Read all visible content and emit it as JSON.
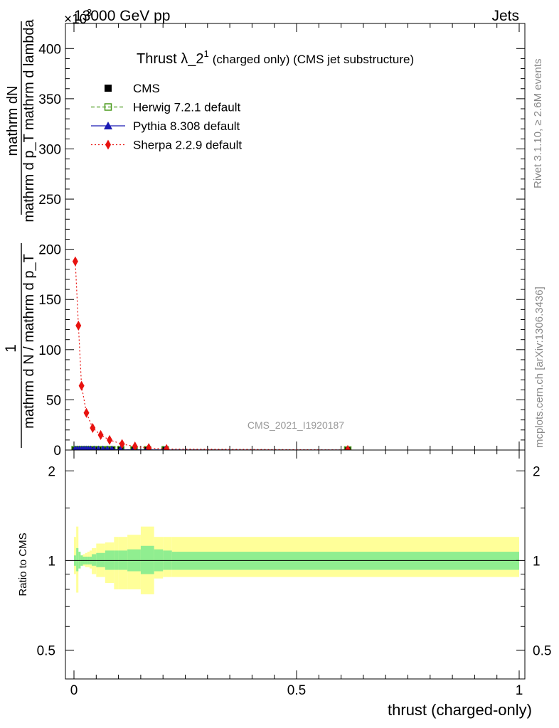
{
  "header": {
    "left": "13000 GeV pp",
    "right": "Jets",
    "exponent_marker": "×10",
    "exponent_power": "3"
  },
  "side_labels": {
    "rivet": "Rivet 3.1.10, ≥ 2.6M events",
    "mcplots": "mcplots.cern.ch [arXiv:1306.3436]"
  },
  "chart_data": [
    {
      "type": "line",
      "title": "Thrust λ_2",
      "title_sup": "1",
      "subtitle": "(charged only) (CMS jet substructure)",
      "watermark": "CMS_2021_I1920187",
      "ylabel_numerator": "1",
      "ylabel_line1": "mathrm dN",
      "ylabel_line2": "mathrm d p_T mathrm d lambda",
      "ylabel_denominator": "mathrm d N / mathrm d p_T",
      "xlim": [
        0,
        1
      ],
      "ylim": [
        0,
        425
      ],
      "y_multiplier": "×10^3",
      "yticks": [
        0,
        50,
        100,
        150,
        200,
        250,
        300,
        350,
        400
      ],
      "legend_position": "top-left",
      "series": [
        {
          "name": "CMS",
          "style": "black filled square",
          "color": "#000000",
          "x": [
            0.0025,
            0.0075,
            0.0125,
            0.0175,
            0.0225,
            0.0275,
            0.0325,
            0.0375,
            0.045,
            0.055,
            0.065,
            0.075,
            0.085,
            0.105,
            0.135,
            0.165,
            0.205,
            0.615
          ],
          "y": [
            0.3,
            0.3,
            0.3,
            0.3,
            0.3,
            0.3,
            0.3,
            0.3,
            0.3,
            0.3,
            0.3,
            0.3,
            0.3,
            0.2,
            0.2,
            0.2,
            0.1,
            0.0
          ]
        },
        {
          "name": "Herwig 7.2.1 default",
          "style": "green dashed, open square",
          "color": "#4a9a1c",
          "x": [
            0.0025,
            0.0075,
            0.0125,
            0.0175,
            0.0225,
            0.0275,
            0.0325,
            0.0375,
            0.045,
            0.055,
            0.065,
            0.075,
            0.085,
            0.105,
            0.135,
            0.165,
            0.205,
            0.615
          ],
          "y": [
            0.3,
            0.3,
            0.3,
            0.3,
            0.3,
            0.3,
            0.3,
            0.3,
            0.3,
            0.3,
            0.3,
            0.3,
            0.3,
            0.2,
            0.2,
            0.2,
            0.1,
            0.0
          ]
        },
        {
          "name": "Pythia 8.308 default",
          "style": "blue solid, filled triangle",
          "color": "#1a1ab4",
          "x": [
            0.0025,
            0.0075,
            0.0125,
            0.0175,
            0.0225,
            0.0275,
            0.0325,
            0.0375,
            0.045,
            0.055,
            0.065,
            0.075,
            0.085,
            0.105,
            0.135,
            0.165,
            0.205,
            0.615
          ],
          "y": [
            0.3,
            0.3,
            0.3,
            0.3,
            0.3,
            0.3,
            0.3,
            0.3,
            0.3,
            0.3,
            0.3,
            0.3,
            0.3,
            0.2,
            0.2,
            0.2,
            0.1,
            0.0
          ]
        },
        {
          "name": "Sherpa 2.2.9 default",
          "style": "red dotted, filled diamond",
          "color": "#e8120f",
          "x": [
            0.003,
            0.01,
            0.017,
            0.028,
            0.042,
            0.06,
            0.08,
            0.108,
            0.137,
            0.168,
            0.208,
            0.615
          ],
          "y": [
            188,
            124,
            64,
            37,
            22,
            15,
            10,
            6,
            3.5,
            2,
            1,
            0.1
          ]
        }
      ]
    },
    {
      "type": "line",
      "ylabel": "Ratio to CMS",
      "xlabel": "thrust (charged-only)",
      "xlim": [
        0,
        1
      ],
      "ylim": [
        0.4,
        2.35
      ],
      "log_y": true,
      "yticks": [
        0.5,
        1,
        2
      ],
      "xticks": [
        0,
        0.5,
        1
      ],
      "reference_line": 1,
      "bands": {
        "edges": [
          0,
          0.005,
          0.01,
          0.015,
          0.02,
          0.025,
          0.03,
          0.035,
          0.04,
          0.05,
          0.07,
          0.09,
          0.1,
          0.12,
          0.15,
          0.18,
          0.2,
          0.22,
          0.23,
          1.0
        ],
        "inner_color": "#90ee90",
        "outer_color": "#ffff99",
        "inner_lo": [
          0.96,
          0.92,
          0.94,
          0.96,
          0.97,
          0.97,
          0.97,
          0.97,
          0.96,
          0.95,
          0.93,
          0.93,
          0.93,
          0.92,
          0.9,
          0.92,
          0.93,
          0.93,
          0.93
        ],
        "inner_hi": [
          1.04,
          1.1,
          1.07,
          1.04,
          1.03,
          1.03,
          1.03,
          1.03,
          1.05,
          1.06,
          1.08,
          1.08,
          1.08,
          1.09,
          1.12,
          1.09,
          1.08,
          1.07,
          1.07
        ],
        "outer_lo": [
          0.9,
          0.78,
          0.96,
          0.97,
          0.96,
          0.95,
          0.95,
          0.94,
          0.9,
          0.88,
          0.84,
          0.8,
          0.8,
          0.8,
          0.77,
          0.87,
          0.88,
          0.88,
          0.88
        ],
        "outer_hi": [
          1.2,
          1.3,
          1.05,
          1.04,
          1.05,
          1.06,
          1.07,
          1.08,
          1.1,
          1.14,
          1.15,
          1.2,
          1.2,
          1.22,
          1.3,
          1.2,
          1.2,
          1.2,
          1.2
        ]
      }
    }
  ]
}
